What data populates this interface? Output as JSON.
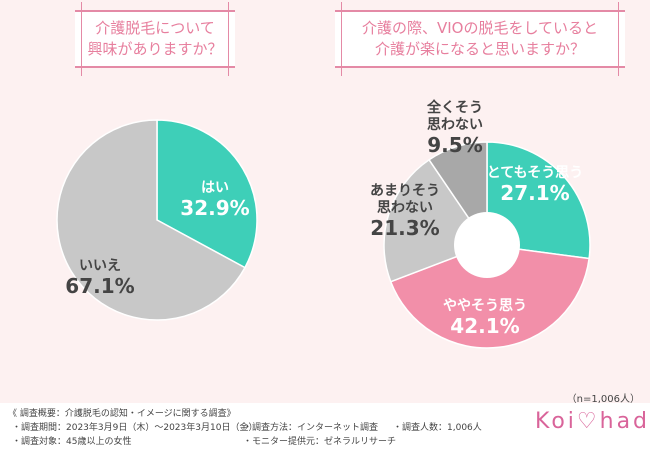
{
  "questions": {
    "q1": [
      "介護脱毛について",
      "興味がありますか？"
    ],
    "q2": [
      "介護の際、VIOの脱毛をしていると",
      "介護が楽になると思いますか？"
    ]
  },
  "sample": "（n=1,006人）",
  "chart_data": [
    {
      "type": "pie",
      "title": "介護脱毛について興味がありますか？",
      "slices": [
        {
          "label": "はい",
          "value": 32.9,
          "display": "32.9%",
          "color": "#3ecfb8"
        },
        {
          "label": "いいえ",
          "value": 67.1,
          "display": "67.1%",
          "color": "#c8c8c8"
        }
      ]
    },
    {
      "type": "pie",
      "donut": true,
      "title": "介護の際、VIOの脱毛をしていると介護が楽になると思いますか？",
      "slices": [
        {
          "label": "とてもそう思う",
          "value": 27.1,
          "display": "27.1%",
          "color": "#3ecfb8"
        },
        {
          "label": "ややそう思う",
          "value": 42.1,
          "display": "42.1%",
          "color": "#f28fa9"
        },
        {
          "label": "あまりそう思わない",
          "value": 21.3,
          "display": "21.3%",
          "color": "#c8c8c8"
        },
        {
          "label": "全くそう思わない",
          "value": 9.5,
          "display": "9.5%",
          "color": "#a8a8a8"
        }
      ]
    }
  ],
  "footer": {
    "title": "《 調査概要：介護脱毛の認知・イメージに関する調査》",
    "period": "・調査期間：2023年3月9日（木）～2023年3月10日（金）",
    "method": "・調査方法：インターネット調査",
    "count": "・調査人数：1,006人",
    "target": "・調査対象：45歳以上の女性",
    "provider": "・モニター提供元：ゼネラルリサーチ",
    "logo": "Koi♡hada"
  }
}
